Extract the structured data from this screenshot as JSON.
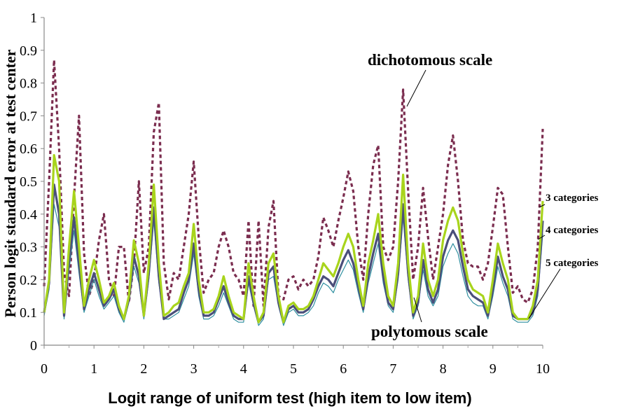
{
  "chart_data": {
    "type": "line",
    "title": "",
    "xlabel": "Logit range of uniform test (high item to low item)",
    "ylabel": "Person logit standard error at test center",
    "xlim": [
      0,
      10
    ],
    "ylim": [
      0,
      1
    ],
    "x_ticks": [
      "0",
      "1",
      "2",
      "3",
      "4",
      "5",
      "6",
      "7",
      "8",
      "9",
      "10"
    ],
    "y_ticks": [
      "0",
      "0.1",
      "0.2",
      "0.3",
      "0.4",
      "0.5",
      "0.6",
      "0.7",
      "0.8",
      "0.9",
      "1"
    ],
    "grid": false,
    "legend": "none",
    "annotations": [
      {
        "text": "dichotomous scale"
      },
      {
        "text": "polytomous scale"
      },
      {
        "text": "3 categories"
      },
      {
        "text": "4 categories"
      },
      {
        "text": "5 categories"
      }
    ],
    "x": [
      0,
      0.1,
      0.2,
      0.3,
      0.4,
      0.5,
      0.6,
      0.7,
      0.8,
      0.9,
      1,
      1.1,
      1.2,
      1.3,
      1.4,
      1.5,
      1.6,
      1.7,
      1.8,
      1.9,
      2,
      2.1,
      2.2,
      2.3,
      2.4,
      2.5,
      2.6,
      2.7,
      2.8,
      2.9,
      3,
      3.1,
      3.2,
      3.3,
      3.4,
      3.5,
      3.6,
      3.7,
      3.8,
      3.9,
      4,
      4.1,
      4.2,
      4.3,
      4.4,
      4.5,
      4.6,
      4.7,
      4.8,
      4.9,
      5,
      5.1,
      5.2,
      5.3,
      5.4,
      5.5,
      5.6,
      5.7,
      5.8,
      5.9,
      6,
      6.1,
      6.2,
      6.3,
      6.4,
      6.5,
      6.6,
      6.7,
      6.8,
      6.9,
      7,
      7.1,
      7.2,
      7.3,
      7.4,
      7.5,
      7.6,
      7.7,
      7.8,
      7.9,
      8,
      8.1,
      8.2,
      8.3,
      8.4,
      8.5,
      8.6,
      8.7,
      8.8,
      8.9,
      9,
      9.1,
      9.2,
      9.3,
      9.4,
      9.5,
      9.6,
      9.7,
      9.8,
      9.9,
      10
    ],
    "series": [
      {
        "name": "dichotomous scale",
        "color": "#7b2d4f",
        "style": "dashed",
        "values": [
          0.18,
          0.5,
          0.87,
          0.6,
          0.22,
          0.15,
          0.45,
          0.7,
          0.28,
          0.15,
          0.2,
          0.32,
          0.4,
          0.2,
          0.15,
          0.3,
          0.3,
          0.13,
          0.25,
          0.5,
          0.22,
          0.3,
          0.65,
          0.74,
          0.25,
          0.14,
          0.22,
          0.2,
          0.3,
          0.4,
          0.56,
          0.33,
          0.16,
          0.2,
          0.22,
          0.3,
          0.35,
          0.3,
          0.22,
          0.2,
          0.15,
          0.38,
          0.12,
          0.38,
          0.12,
          0.36,
          0.44,
          0.15,
          0.14,
          0.2,
          0.21,
          0.17,
          0.2,
          0.18,
          0.2,
          0.27,
          0.39,
          0.35,
          0.3,
          0.38,
          0.45,
          0.53,
          0.47,
          0.3,
          0.2,
          0.4,
          0.55,
          0.61,
          0.3,
          0.26,
          0.3,
          0.5,
          0.78,
          0.47,
          0.2,
          0.3,
          0.48,
          0.33,
          0.2,
          0.3,
          0.4,
          0.55,
          0.64,
          0.5,
          0.32,
          0.25,
          0.24,
          0.24,
          0.2,
          0.25,
          0.36,
          0.48,
          0.46,
          0.3,
          0.16,
          0.18,
          0.14,
          0.13,
          0.17,
          0.3,
          0.66
        ]
      },
      {
        "name": "3 categories",
        "color": "#a8d41c",
        "style": "solid",
        "values": [
          0.1,
          0.2,
          0.58,
          0.5,
          0.1,
          0.3,
          0.47,
          0.3,
          0.12,
          0.2,
          0.26,
          0.2,
          0.13,
          0.15,
          0.19,
          0.12,
          0.08,
          0.15,
          0.32,
          0.25,
          0.09,
          0.25,
          0.49,
          0.25,
          0.09,
          0.1,
          0.12,
          0.13,
          0.18,
          0.22,
          0.37,
          0.2,
          0.1,
          0.1,
          0.11,
          0.15,
          0.21,
          0.15,
          0.1,
          0.09,
          0.08,
          0.25,
          0.15,
          0.07,
          0.1,
          0.25,
          0.28,
          0.15,
          0.07,
          0.12,
          0.13,
          0.11,
          0.11,
          0.12,
          0.15,
          0.2,
          0.25,
          0.23,
          0.21,
          0.25,
          0.3,
          0.34,
          0.3,
          0.2,
          0.12,
          0.25,
          0.32,
          0.4,
          0.25,
          0.15,
          0.12,
          0.25,
          0.52,
          0.25,
          0.1,
          0.15,
          0.31,
          0.2,
          0.15,
          0.2,
          0.32,
          0.38,
          0.42,
          0.38,
          0.28,
          0.2,
          0.17,
          0.16,
          0.15,
          0.1,
          0.2,
          0.31,
          0.25,
          0.2,
          0.1,
          0.08,
          0.08,
          0.08,
          0.12,
          0.2,
          0.44
        ]
      },
      {
        "name": "4 categories",
        "color": "#4a4f7a",
        "style": "solid",
        "values": [
          0.1,
          0.19,
          0.49,
          0.4,
          0.09,
          0.26,
          0.39,
          0.25,
          0.11,
          0.17,
          0.22,
          0.17,
          0.12,
          0.14,
          0.17,
          0.11,
          0.08,
          0.14,
          0.27,
          0.21,
          0.09,
          0.22,
          0.42,
          0.21,
          0.08,
          0.09,
          0.1,
          0.11,
          0.16,
          0.2,
          0.31,
          0.17,
          0.09,
          0.09,
          0.1,
          0.14,
          0.18,
          0.13,
          0.09,
          0.08,
          0.08,
          0.21,
          0.13,
          0.07,
          0.09,
          0.22,
          0.24,
          0.13,
          0.07,
          0.11,
          0.12,
          0.1,
          0.1,
          0.11,
          0.14,
          0.18,
          0.21,
          0.2,
          0.18,
          0.22,
          0.26,
          0.29,
          0.25,
          0.18,
          0.11,
          0.21,
          0.28,
          0.34,
          0.21,
          0.13,
          0.11,
          0.22,
          0.43,
          0.22,
          0.09,
          0.13,
          0.26,
          0.17,
          0.13,
          0.17,
          0.27,
          0.32,
          0.35,
          0.32,
          0.24,
          0.17,
          0.15,
          0.14,
          0.13,
          0.09,
          0.17,
          0.27,
          0.21,
          0.17,
          0.09,
          0.08,
          0.08,
          0.08,
          0.1,
          0.17,
          0.38
        ]
      },
      {
        "name": "5 categories",
        "color": "#2f8fa0",
        "style": "solid",
        "values": [
          0.09,
          0.17,
          0.43,
          0.36,
          0.08,
          0.23,
          0.35,
          0.22,
          0.1,
          0.15,
          0.2,
          0.15,
          0.11,
          0.13,
          0.15,
          0.1,
          0.07,
          0.13,
          0.24,
          0.19,
          0.08,
          0.2,
          0.38,
          0.19,
          0.08,
          0.08,
          0.09,
          0.1,
          0.14,
          0.18,
          0.28,
          0.15,
          0.08,
          0.08,
          0.09,
          0.12,
          0.16,
          0.12,
          0.08,
          0.07,
          0.07,
          0.19,
          0.12,
          0.06,
          0.08,
          0.2,
          0.21,
          0.12,
          0.06,
          0.1,
          0.11,
          0.09,
          0.09,
          0.1,
          0.12,
          0.16,
          0.19,
          0.18,
          0.16,
          0.2,
          0.23,
          0.26,
          0.23,
          0.16,
          0.1,
          0.19,
          0.25,
          0.31,
          0.19,
          0.12,
          0.1,
          0.2,
          0.39,
          0.2,
          0.08,
          0.12,
          0.23,
          0.15,
          0.12,
          0.15,
          0.24,
          0.28,
          0.31,
          0.28,
          0.21,
          0.15,
          0.13,
          0.12,
          0.12,
          0.08,
          0.15,
          0.24,
          0.19,
          0.15,
          0.08,
          0.07,
          0.07,
          0.07,
          0.09,
          0.15,
          0.34
        ]
      }
    ]
  }
}
